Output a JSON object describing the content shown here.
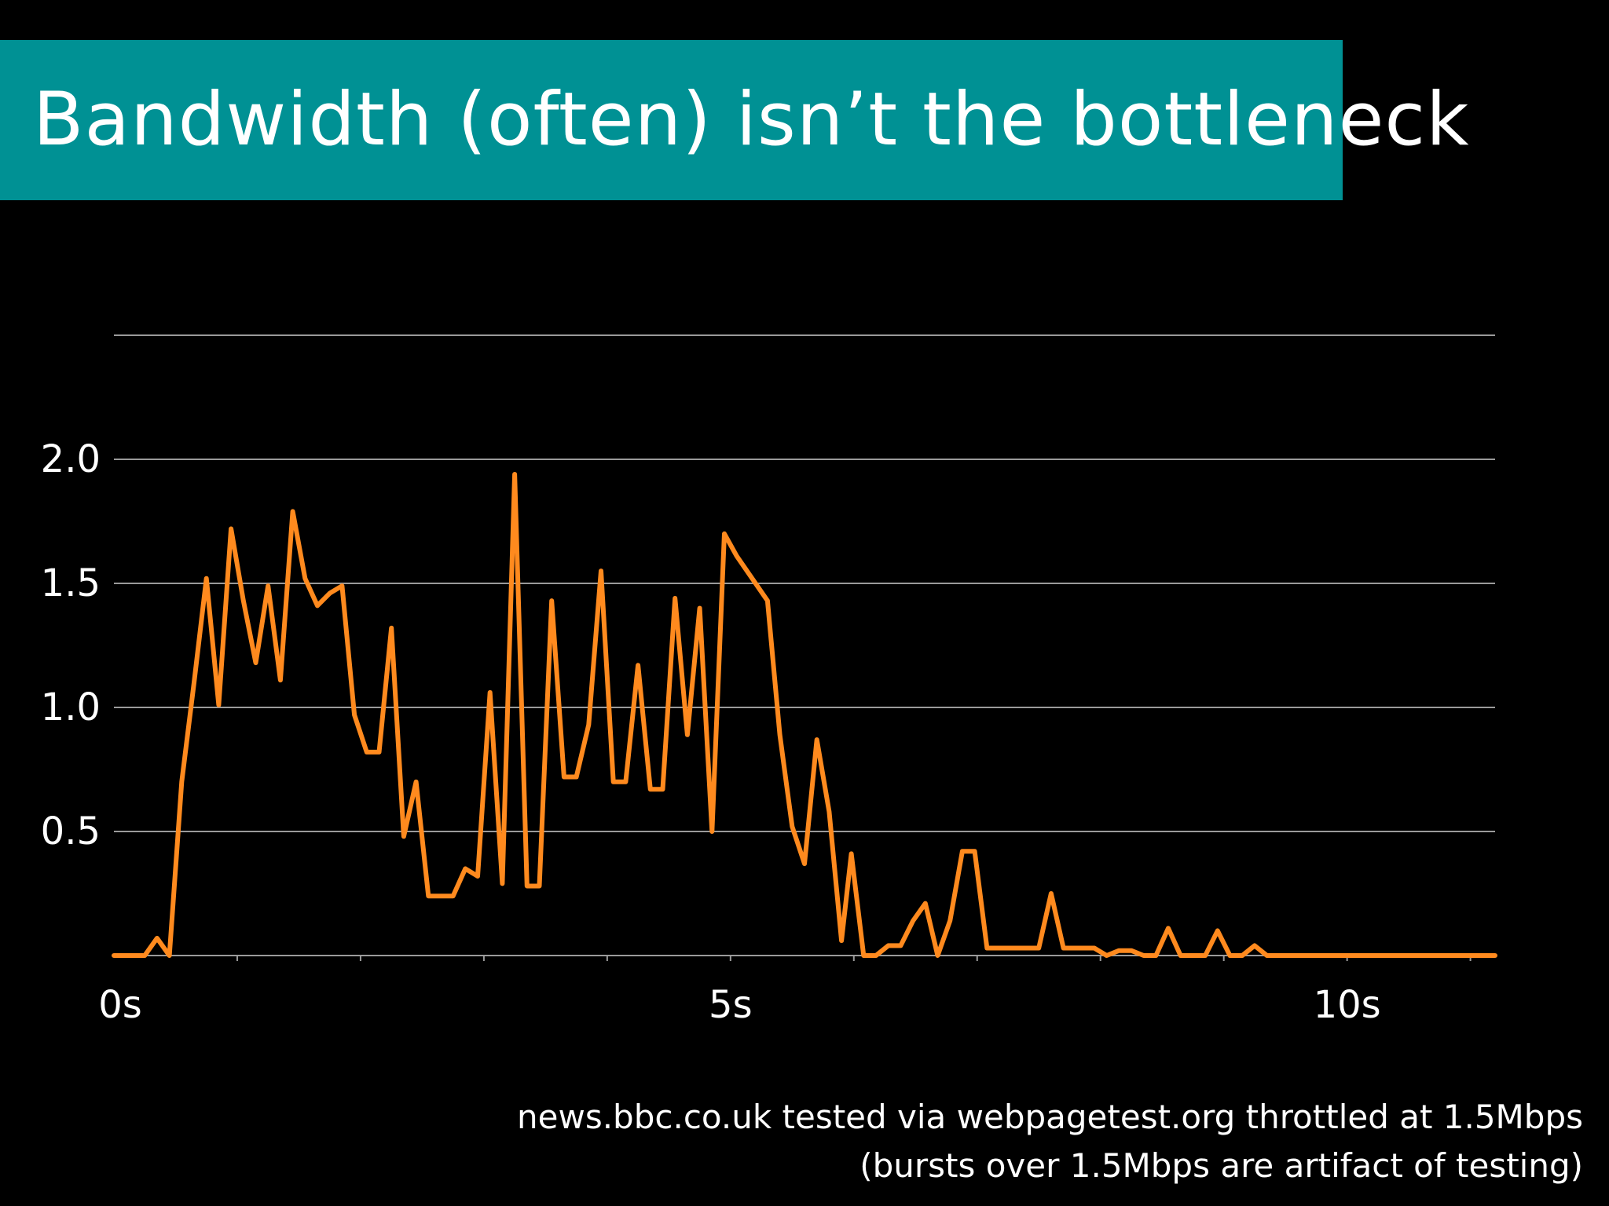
{
  "slide": {
    "title": "Bandwidth (often) isn’t the bottleneck",
    "caption_line1": "news.bbc.co.uk tested via webpagetest.org throttled at 1.5Mbps",
    "caption_line2": "(bursts over 1.5Mbps are artifact of testing)"
  },
  "colors": {
    "title_bar": "#009194",
    "background": "#000000",
    "line": "#ff8a1e",
    "grid": "#9a9a9a",
    "text": "#ffffff"
  },
  "chart_data": {
    "type": "line",
    "xlim": [
      0,
      11.2
    ],
    "ylim": [
      0,
      2.5
    ],
    "grid": true,
    "y_ticks": [
      {
        "value": 0.5,
        "label": "0.5"
      },
      {
        "value": 1.0,
        "label": "1.0"
      },
      {
        "value": 1.5,
        "label": "1.5"
      },
      {
        "value": 2.0,
        "label": "2.0"
      }
    ],
    "y_gridlines": [
      0.5,
      1.0,
      1.5,
      2.0,
      2.5
    ],
    "x_ticks": [
      {
        "value": 0,
        "label": "0s"
      },
      {
        "value": 5,
        "label": "5s"
      },
      {
        "value": 10,
        "label": "10s"
      }
    ],
    "x_minor_ticks": [
      1,
      2,
      3,
      4,
      5,
      6,
      7,
      8,
      9,
      10,
      11
    ],
    "series": [
      {
        "points": [
          [
            0.0,
            0.0
          ],
          [
            0.25,
            0.0
          ],
          [
            0.35,
            0.07
          ],
          [
            0.45,
            0.0
          ],
          [
            0.55,
            0.7
          ],
          [
            0.65,
            1.1
          ],
          [
            0.75,
            1.52
          ],
          [
            0.85,
            1.01
          ],
          [
            0.95,
            1.72
          ],
          [
            1.05,
            1.43
          ],
          [
            1.15,
            1.18
          ],
          [
            1.25,
            1.49
          ],
          [
            1.35,
            1.11
          ],
          [
            1.45,
            1.79
          ],
          [
            1.55,
            1.52
          ],
          [
            1.65,
            1.41
          ],
          [
            1.75,
            1.46
          ],
          [
            1.85,
            1.49
          ],
          [
            1.95,
            0.97
          ],
          [
            2.05,
            0.82
          ],
          [
            2.15,
            0.82
          ],
          [
            2.25,
            1.32
          ],
          [
            2.35,
            0.48
          ],
          [
            2.45,
            0.7
          ],
          [
            2.55,
            0.24
          ],
          [
            2.65,
            0.24
          ],
          [
            2.75,
            0.24
          ],
          [
            2.85,
            0.35
          ],
          [
            2.95,
            0.32
          ],
          [
            3.05,
            1.06
          ],
          [
            3.15,
            0.29
          ],
          [
            3.25,
            1.94
          ],
          [
            3.35,
            0.28
          ],
          [
            3.45,
            0.28
          ],
          [
            3.55,
            1.43
          ],
          [
            3.65,
            0.72
          ],
          [
            3.75,
            0.72
          ],
          [
            3.85,
            0.93
          ],
          [
            3.95,
            1.55
          ],
          [
            4.05,
            0.7
          ],
          [
            4.15,
            0.7
          ],
          [
            4.25,
            1.17
          ],
          [
            4.35,
            0.67
          ],
          [
            4.45,
            0.67
          ],
          [
            4.55,
            1.44
          ],
          [
            4.65,
            0.89
          ],
          [
            4.75,
            1.4
          ],
          [
            4.85,
            0.5
          ],
          [
            4.95,
            1.7
          ],
          [
            5.05,
            1.61
          ],
          [
            5.3,
            1.43
          ],
          [
            5.4,
            0.89
          ],
          [
            5.5,
            0.52
          ],
          [
            5.6,
            0.37
          ],
          [
            5.7,
            0.87
          ],
          [
            5.8,
            0.58
          ],
          [
            5.9,
            0.06
          ],
          [
            5.98,
            0.41
          ],
          [
            6.08,
            0.0
          ],
          [
            6.18,
            0.0
          ],
          [
            6.28,
            0.04
          ],
          [
            6.38,
            0.04
          ],
          [
            6.48,
            0.14
          ],
          [
            6.58,
            0.21
          ],
          [
            6.68,
            0.0
          ],
          [
            6.78,
            0.14
          ],
          [
            6.88,
            0.42
          ],
          [
            6.98,
            0.42
          ],
          [
            7.08,
            0.03
          ],
          [
            7.5,
            0.03
          ],
          [
            7.6,
            0.25
          ],
          [
            7.7,
            0.03
          ],
          [
            7.95,
            0.03
          ],
          [
            8.05,
            0.0
          ],
          [
            8.15,
            0.02
          ],
          [
            8.25,
            0.02
          ],
          [
            8.35,
            0.0
          ],
          [
            8.45,
            0.0
          ],
          [
            8.55,
            0.11
          ],
          [
            8.65,
            0.0
          ],
          [
            8.85,
            0.0
          ],
          [
            8.95,
            0.1
          ],
          [
            9.05,
            0.0
          ],
          [
            9.15,
            0.0
          ],
          [
            9.25,
            0.04
          ],
          [
            9.35,
            0.0
          ],
          [
            11.2,
            0.0
          ]
        ]
      }
    ]
  }
}
